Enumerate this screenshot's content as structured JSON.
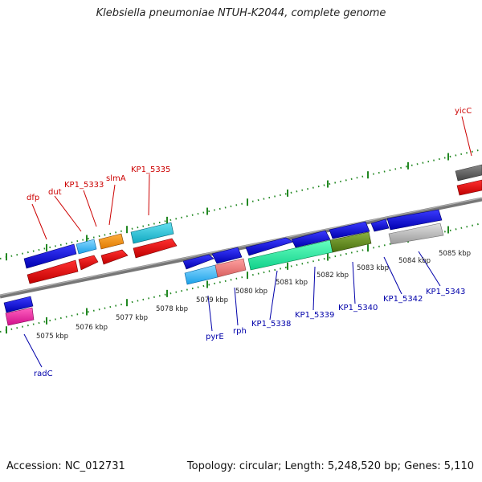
{
  "title": "Klebsiella pneumoniae NTUH-K2044, complete genome",
  "footer": {
    "accession": "Accession: NC_012731",
    "summary": "Topology: circular; Length: 5,248,520 bp; Genes: 5,110"
  },
  "colors": {
    "forward_label": "#cc0000",
    "reverse_label": "#0000aa",
    "tick": "#228822",
    "backbone": "#888888"
  },
  "scale": {
    "unit": "kbp",
    "ticks": [
      {
        "kbp": 5075,
        "label": "5075 kbp"
      },
      {
        "kbp": 5076,
        "label": "5076 kbp"
      },
      {
        "kbp": 5077,
        "label": "5077 kbp"
      },
      {
        "kbp": 5078,
        "label": "5078 kbp"
      },
      {
        "kbp": 5079,
        "label": "5079 kbp"
      },
      {
        "kbp": 5080,
        "label": "5080 kbp"
      },
      {
        "kbp": 5081,
        "label": "5081 kbp"
      },
      {
        "kbp": 5082,
        "label": "5082 kbp"
      },
      {
        "kbp": 5083,
        "label": "5083 kbp"
      },
      {
        "kbp": 5084,
        "label": "5084 kbp"
      },
      {
        "kbp": 5085,
        "label": "5085 kbp"
      }
    ]
  },
  "genes_top": [
    {
      "name": "dfp"
    },
    {
      "name": "dut"
    },
    {
      "name": "KP1_5333"
    },
    {
      "name": "slmA"
    },
    {
      "name": "KP1_5335"
    },
    {
      "name": "yicC"
    }
  ],
  "genes_bottom": [
    {
      "name": "radC"
    },
    {
      "name": "pyrE"
    },
    {
      "name": "rph"
    },
    {
      "name": "KP1_5338"
    },
    {
      "name": "KP1_5339"
    },
    {
      "name": "KP1_5340"
    },
    {
      "name": "KP1_5342"
    },
    {
      "name": "KP1_5343"
    }
  ]
}
